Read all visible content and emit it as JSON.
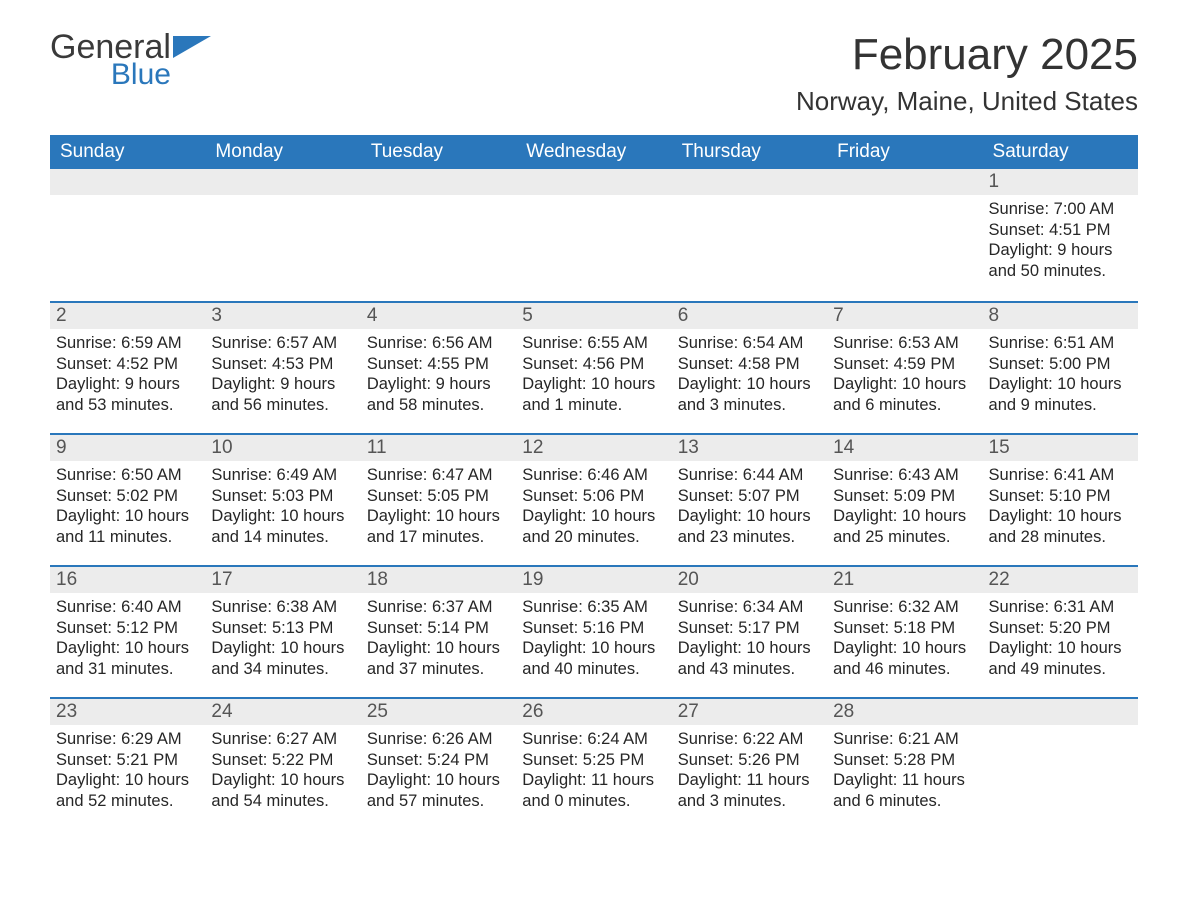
{
  "logo": {
    "word1": "General",
    "word2": "Blue",
    "word1_color": "#3a3a3a",
    "word2_color": "#2a77bb",
    "flag_color": "#2a77bb"
  },
  "title": "February 2025",
  "location": "Norway, Maine, United States",
  "colors": {
    "header_bg": "#2a77bb",
    "header_text": "#ffffff",
    "week_border": "#2a77bb",
    "daynum_bg": "#ececec",
    "daynum_text": "#555555",
    "body_text": "#262626",
    "page_bg": "#ffffff"
  },
  "fonts": {
    "title_size_pt": 33,
    "location_size_pt": 20,
    "header_size_pt": 14,
    "body_size_pt": 12
  },
  "day_headers": [
    "Sunday",
    "Monday",
    "Tuesday",
    "Wednesday",
    "Thursday",
    "Friday",
    "Saturday"
  ],
  "labels": {
    "sunrise": "Sunrise: ",
    "sunset": "Sunset: ",
    "daylight": "Daylight: "
  },
  "weeks": [
    [
      null,
      null,
      null,
      null,
      null,
      null,
      {
        "n": "1",
        "sunrise": "7:00 AM",
        "sunset": "4:51 PM",
        "daylight": "9 hours and 50 minutes."
      }
    ],
    [
      {
        "n": "2",
        "sunrise": "6:59 AM",
        "sunset": "4:52 PM",
        "daylight": "9 hours and 53 minutes."
      },
      {
        "n": "3",
        "sunrise": "6:57 AM",
        "sunset": "4:53 PM",
        "daylight": "9 hours and 56 minutes."
      },
      {
        "n": "4",
        "sunrise": "6:56 AM",
        "sunset": "4:55 PM",
        "daylight": "9 hours and 58 minutes."
      },
      {
        "n": "5",
        "sunrise": "6:55 AM",
        "sunset": "4:56 PM",
        "daylight": "10 hours and 1 minute."
      },
      {
        "n": "6",
        "sunrise": "6:54 AM",
        "sunset": "4:58 PM",
        "daylight": "10 hours and 3 minutes."
      },
      {
        "n": "7",
        "sunrise": "6:53 AM",
        "sunset": "4:59 PM",
        "daylight": "10 hours and 6 minutes."
      },
      {
        "n": "8",
        "sunrise": "6:51 AM",
        "sunset": "5:00 PM",
        "daylight": "10 hours and 9 minutes."
      }
    ],
    [
      {
        "n": "9",
        "sunrise": "6:50 AM",
        "sunset": "5:02 PM",
        "daylight": "10 hours and 11 minutes."
      },
      {
        "n": "10",
        "sunrise": "6:49 AM",
        "sunset": "5:03 PM",
        "daylight": "10 hours and 14 minutes."
      },
      {
        "n": "11",
        "sunrise": "6:47 AM",
        "sunset": "5:05 PM",
        "daylight": "10 hours and 17 minutes."
      },
      {
        "n": "12",
        "sunrise": "6:46 AM",
        "sunset": "5:06 PM",
        "daylight": "10 hours and 20 minutes."
      },
      {
        "n": "13",
        "sunrise": "6:44 AM",
        "sunset": "5:07 PM",
        "daylight": "10 hours and 23 minutes."
      },
      {
        "n": "14",
        "sunrise": "6:43 AM",
        "sunset": "5:09 PM",
        "daylight": "10 hours and 25 minutes."
      },
      {
        "n": "15",
        "sunrise": "6:41 AM",
        "sunset": "5:10 PM",
        "daylight": "10 hours and 28 minutes."
      }
    ],
    [
      {
        "n": "16",
        "sunrise": "6:40 AM",
        "sunset": "5:12 PM",
        "daylight": "10 hours and 31 minutes."
      },
      {
        "n": "17",
        "sunrise": "6:38 AM",
        "sunset": "5:13 PM",
        "daylight": "10 hours and 34 minutes."
      },
      {
        "n": "18",
        "sunrise": "6:37 AM",
        "sunset": "5:14 PM",
        "daylight": "10 hours and 37 minutes."
      },
      {
        "n": "19",
        "sunrise": "6:35 AM",
        "sunset": "5:16 PM",
        "daylight": "10 hours and 40 minutes."
      },
      {
        "n": "20",
        "sunrise": "6:34 AM",
        "sunset": "5:17 PM",
        "daylight": "10 hours and 43 minutes."
      },
      {
        "n": "21",
        "sunrise": "6:32 AM",
        "sunset": "5:18 PM",
        "daylight": "10 hours and 46 minutes."
      },
      {
        "n": "22",
        "sunrise": "6:31 AM",
        "sunset": "5:20 PM",
        "daylight": "10 hours and 49 minutes."
      }
    ],
    [
      {
        "n": "23",
        "sunrise": "6:29 AM",
        "sunset": "5:21 PM",
        "daylight": "10 hours and 52 minutes."
      },
      {
        "n": "24",
        "sunrise": "6:27 AM",
        "sunset": "5:22 PM",
        "daylight": "10 hours and 54 minutes."
      },
      {
        "n": "25",
        "sunrise": "6:26 AM",
        "sunset": "5:24 PM",
        "daylight": "10 hours and 57 minutes."
      },
      {
        "n": "26",
        "sunrise": "6:24 AM",
        "sunset": "5:25 PM",
        "daylight": "11 hours and 0 minutes."
      },
      {
        "n": "27",
        "sunrise": "6:22 AM",
        "sunset": "5:26 PM",
        "daylight": "11 hours and 3 minutes."
      },
      {
        "n": "28",
        "sunrise": "6:21 AM",
        "sunset": "5:28 PM",
        "daylight": "11 hours and 6 minutes."
      },
      null
    ]
  ]
}
